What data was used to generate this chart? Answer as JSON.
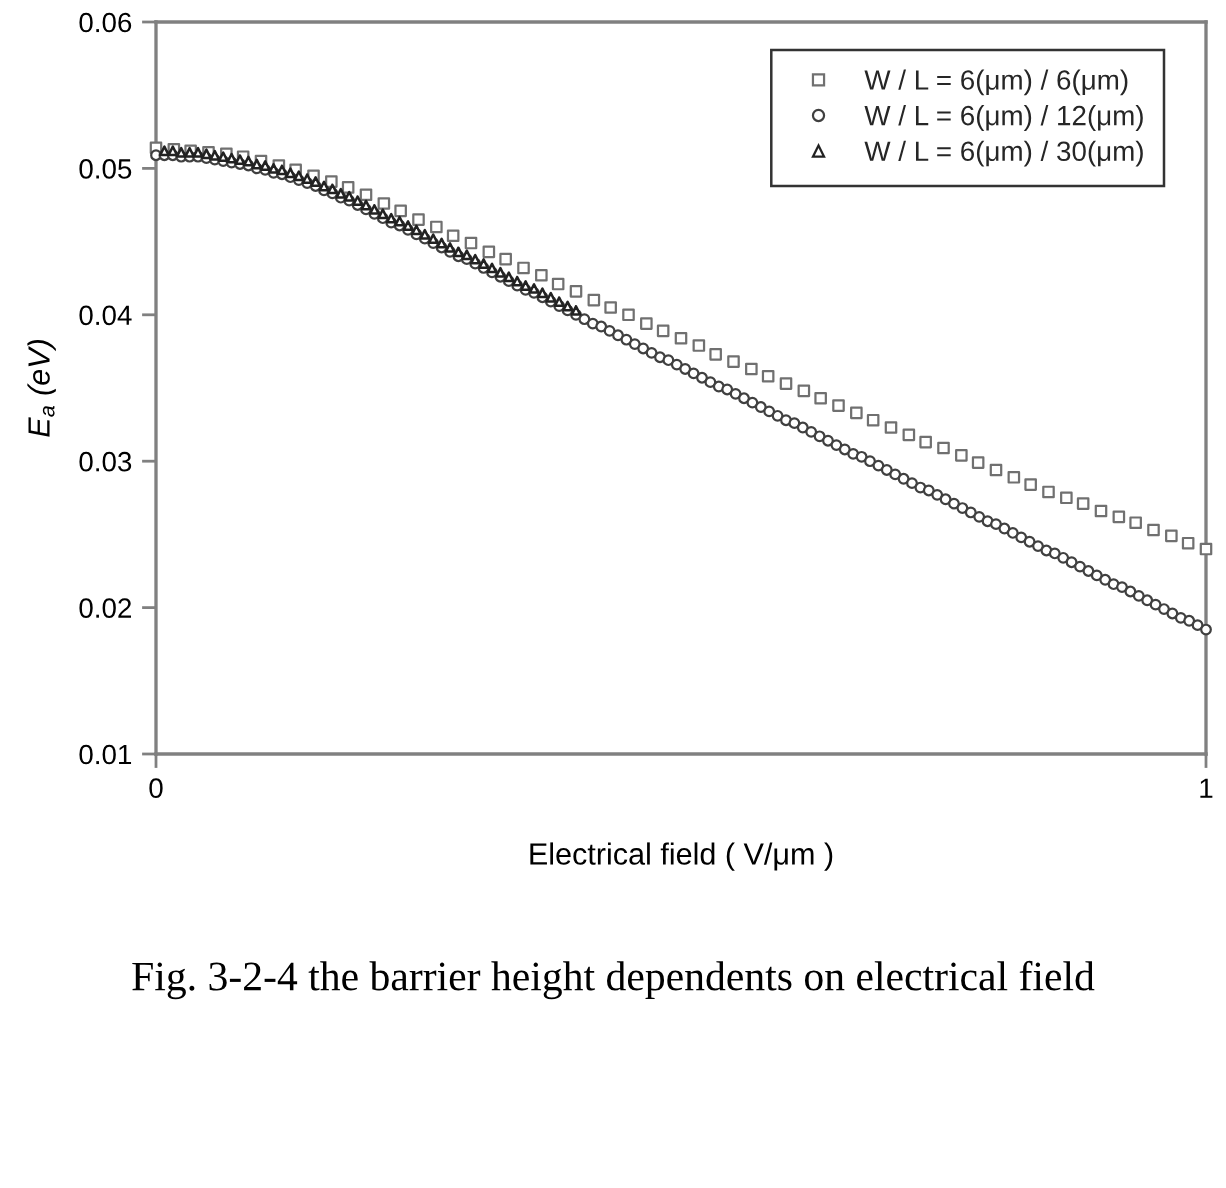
{
  "chart_data": {
    "type": "scatter",
    "xlabel": "Electrical field ( V/μm )",
    "ylabel": "E$_{a}$ (eV)",
    "xlim": [
      0,
      1
    ],
    "xticks": [
      0,
      1
    ],
    "ylim": [
      0.01,
      0.06
    ],
    "yticks": [
      0.01,
      0.02,
      0.03,
      0.04,
      0.05,
      0.06
    ],
    "legend": "top right",
    "annotations": [
      "Fig. 3-2-4 the barrier height dependents on electrical field"
    ],
    "series": [
      {
        "name": "W / L = 6(μm) / 6(μm)",
        "color": "#707070",
        "marker": "square",
        "x": [
          0,
          0.017,
          0.033,
          0.05,
          0.067,
          0.083,
          0.1,
          0.117,
          0.133,
          0.15,
          0.167,
          0.183,
          0.2,
          0.217,
          0.233,
          0.25,
          0.267,
          0.283,
          0.3,
          0.317,
          0.333,
          0.35,
          0.367,
          0.383,
          0.4,
          0.417,
          0.433,
          0.45,
          0.467,
          0.483,
          0.5,
          0.517,
          0.533,
          0.55,
          0.567,
          0.583,
          0.6,
          0.617,
          0.633,
          0.65,
          0.667,
          0.683,
          0.7,
          0.717,
          0.733,
          0.75,
          0.767,
          0.783,
          0.8,
          0.817,
          0.833,
          0.85,
          0.867,
          0.883,
          0.9,
          0.917,
          0.933,
          0.95,
          0.967,
          0.983,
          1.0
        ],
        "values": [
          0.0514,
          0.0513,
          0.0512,
          0.0511,
          0.051,
          0.0508,
          0.0505,
          0.0502,
          0.0499,
          0.0495,
          0.0491,
          0.0487,
          0.0482,
          0.0476,
          0.0471,
          0.0465,
          0.046,
          0.0454,
          0.0449,
          0.0443,
          0.0438,
          0.0432,
          0.0427,
          0.0421,
          0.0416,
          0.041,
          0.0405,
          0.04,
          0.0394,
          0.0389,
          0.0384,
          0.0379,
          0.0373,
          0.0368,
          0.0363,
          0.0358,
          0.0353,
          0.0348,
          0.0343,
          0.0338,
          0.0333,
          0.0328,
          0.0323,
          0.0318,
          0.0313,
          0.0309,
          0.0304,
          0.0299,
          0.0294,
          0.0289,
          0.0284,
          0.0279,
          0.0275,
          0.0271,
          0.0266,
          0.0262,
          0.0258,
          0.0253,
          0.0249,
          0.0244,
          0.024
        ]
      },
      {
        "name": "W / L = 6(μm) / 12(μm)",
        "color": "#404040",
        "marker": "circle",
        "x": [
          0,
          0.008,
          0.016,
          0.024,
          0.032,
          0.04,
          0.048,
          0.056,
          0.064,
          0.072,
          0.08,
          0.088,
          0.096,
          0.104,
          0.112,
          0.12,
          0.128,
          0.136,
          0.144,
          0.152,
          0.16,
          0.168,
          0.176,
          0.184,
          0.192,
          0.2,
          0.208,
          0.216,
          0.224,
          0.232,
          0.24,
          0.248,
          0.256,
          0.264,
          0.272,
          0.28,
          0.288,
          0.296,
          0.304,
          0.312,
          0.32,
          0.328,
          0.336,
          0.344,
          0.352,
          0.36,
          0.368,
          0.376,
          0.384,
          0.392,
          0.4,
          0.408,
          0.416,
          0.424,
          0.432,
          0.44,
          0.448,
          0.456,
          0.464,
          0.472,
          0.48,
          0.488,
          0.496,
          0.504,
          0.512,
          0.52,
          0.528,
          0.536,
          0.544,
          0.552,
          0.56,
          0.568,
          0.576,
          0.584,
          0.592,
          0.6,
          0.608,
          0.616,
          0.624,
          0.632,
          0.64,
          0.648,
          0.656,
          0.664,
          0.672,
          0.68,
          0.688,
          0.696,
          0.704,
          0.712,
          0.72,
          0.728,
          0.736,
          0.744,
          0.752,
          0.76,
          0.768,
          0.776,
          0.784,
          0.792,
          0.8,
          0.808,
          0.816,
          0.824,
          0.832,
          0.84,
          0.848,
          0.856,
          0.864,
          0.872,
          0.88,
          0.888,
          0.896,
          0.904,
          0.912,
          0.92,
          0.928,
          0.936,
          0.944,
          0.952,
          0.96,
          0.968,
          0.976,
          0.984,
          0.992,
          1.0
        ],
        "values": [
          0.0509,
          0.0509,
          0.0509,
          0.0508,
          0.0508,
          0.0508,
          0.0507,
          0.0506,
          0.0505,
          0.0504,
          0.0503,
          0.0502,
          0.05,
          0.0499,
          0.0497,
          0.0496,
          0.0494,
          0.0492,
          0.049,
          0.0488,
          0.0485,
          0.0483,
          0.048,
          0.0478,
          0.0475,
          0.0472,
          0.0469,
          0.0466,
          0.0463,
          0.0461,
          0.0458,
          0.0455,
          0.0452,
          0.0449,
          0.0446,
          0.0443,
          0.044,
          0.0438,
          0.0435,
          0.0432,
          0.0429,
          0.0426,
          0.0423,
          0.042,
          0.0417,
          0.0415,
          0.0412,
          0.0409,
          0.0406,
          0.0403,
          0.04,
          0.0397,
          0.0394,
          0.0392,
          0.0389,
          0.0386,
          0.0383,
          0.038,
          0.0377,
          0.0374,
          0.0371,
          0.0369,
          0.0366,
          0.0363,
          0.036,
          0.0357,
          0.0354,
          0.0351,
          0.0349,
          0.0346,
          0.0343,
          0.034,
          0.0337,
          0.0334,
          0.0331,
          0.0328,
          0.0326,
          0.0323,
          0.032,
          0.0317,
          0.0314,
          0.0311,
          0.0308,
          0.0305,
          0.0303,
          0.03,
          0.0297,
          0.0294,
          0.0291,
          0.0288,
          0.0285,
          0.0282,
          0.028,
          0.0277,
          0.0274,
          0.0271,
          0.0268,
          0.0265,
          0.0262,
          0.0259,
          0.0257,
          0.0254,
          0.0251,
          0.0248,
          0.0245,
          0.0242,
          0.0239,
          0.0237,
          0.0234,
          0.0231,
          0.0228,
          0.0225,
          0.0222,
          0.0219,
          0.0216,
          0.0214,
          0.0211,
          0.0208,
          0.0205,
          0.0202,
          0.0199,
          0.0196,
          0.0193,
          0.0191,
          0.0188,
          0.0185
        ]
      },
      {
        "name": "W / L = 6(μm) / 30(μm)",
        "color": "#222222",
        "marker": "triangle",
        "x": [
          0.008,
          0.016,
          0.024,
          0.032,
          0.04,
          0.048,
          0.056,
          0.064,
          0.072,
          0.08,
          0.088,
          0.096,
          0.104,
          0.112,
          0.12,
          0.128,
          0.136,
          0.144,
          0.152,
          0.16,
          0.168,
          0.176,
          0.184,
          0.192,
          0.2,
          0.208,
          0.216,
          0.224,
          0.232,
          0.24,
          0.248,
          0.256,
          0.264,
          0.272,
          0.28,
          0.288,
          0.296,
          0.304,
          0.312,
          0.32,
          0.328,
          0.336,
          0.344,
          0.352,
          0.36,
          0.368,
          0.376,
          0.384,
          0.392,
          0.4
        ],
        "values": [
          0.0512,
          0.0512,
          0.0511,
          0.0511,
          0.0511,
          0.051,
          0.0509,
          0.0508,
          0.0507,
          0.0506,
          0.0505,
          0.0503,
          0.0502,
          0.05,
          0.0499,
          0.0497,
          0.0495,
          0.0493,
          0.0491,
          0.0488,
          0.0486,
          0.0483,
          0.0481,
          0.0478,
          0.0475,
          0.0472,
          0.0469,
          0.0466,
          0.0464,
          0.0461,
          0.0458,
          0.0455,
          0.0452,
          0.0449,
          0.0446,
          0.0443,
          0.0441,
          0.0438,
          0.0435,
          0.0432,
          0.0429,
          0.0426,
          0.0423,
          0.042,
          0.0418,
          0.0415,
          0.0412,
          0.0409,
          0.0406,
          0.0403
        ]
      }
    ]
  }
}
